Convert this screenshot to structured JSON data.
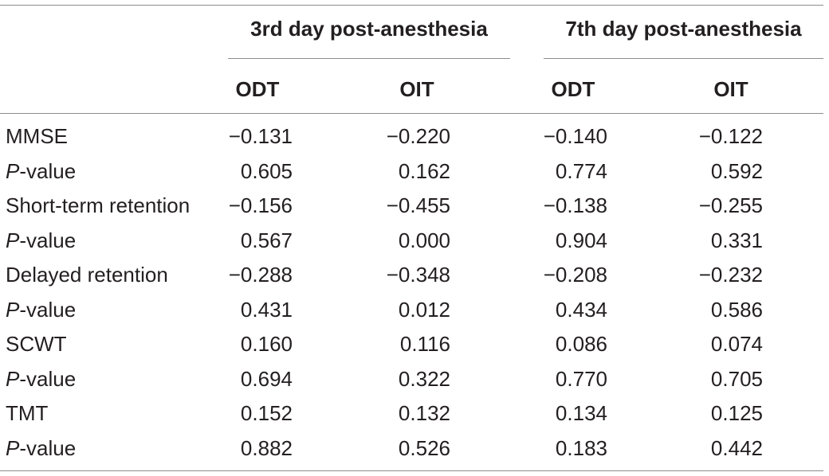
{
  "table": {
    "groups": [
      "3rd day post-anesthesia",
      "7th day post-anesthesia"
    ],
    "columns": [
      "ODT",
      "OIT",
      "ODT",
      "OIT"
    ],
    "rows": [
      {
        "label": "MMSE",
        "italic_prefix": "",
        "suffix": "",
        "values": [
          "−0.131",
          "−0.220",
          "−0.140",
          "−0.122"
        ]
      },
      {
        "label": "",
        "italic_prefix": "P",
        "suffix": "-value",
        "values": [
          "0.605",
          "0.162",
          "0.774",
          "0.592"
        ]
      },
      {
        "label": "Short-term retention",
        "italic_prefix": "",
        "suffix": "",
        "values": [
          "−0.156",
          "−0.455",
          "−0.138",
          "−0.255"
        ]
      },
      {
        "label": "",
        "italic_prefix": "P",
        "suffix": "-value",
        "values": [
          "0.567",
          "0.000",
          "0.904",
          "0.331"
        ]
      },
      {
        "label": "Delayed retention",
        "italic_prefix": "",
        "suffix": "",
        "values": [
          "−0.288",
          "−0.348",
          "−0.208",
          "−0.232"
        ]
      },
      {
        "label": "",
        "italic_prefix": "P",
        "suffix": "-value",
        "values": [
          "0.431",
          "0.012",
          "0.434",
          "0.586"
        ]
      },
      {
        "label": "SCWT",
        "italic_prefix": "",
        "suffix": "",
        "values": [
          "0.160",
          "0.116",
          "0.086",
          "0.074"
        ]
      },
      {
        "label": "",
        "italic_prefix": "P",
        "suffix": "-value",
        "values": [
          "0.694",
          "0.322",
          "0.770",
          "0.705"
        ]
      },
      {
        "label": "TMT",
        "italic_prefix": "",
        "suffix": "",
        "values": [
          "0.152",
          "0.132",
          "0.134",
          "0.125"
        ]
      },
      {
        "label": "",
        "italic_prefix": "P",
        "suffix": "-value",
        "values": [
          "0.882",
          "0.526",
          "0.183",
          "0.442"
        ]
      }
    ]
  }
}
